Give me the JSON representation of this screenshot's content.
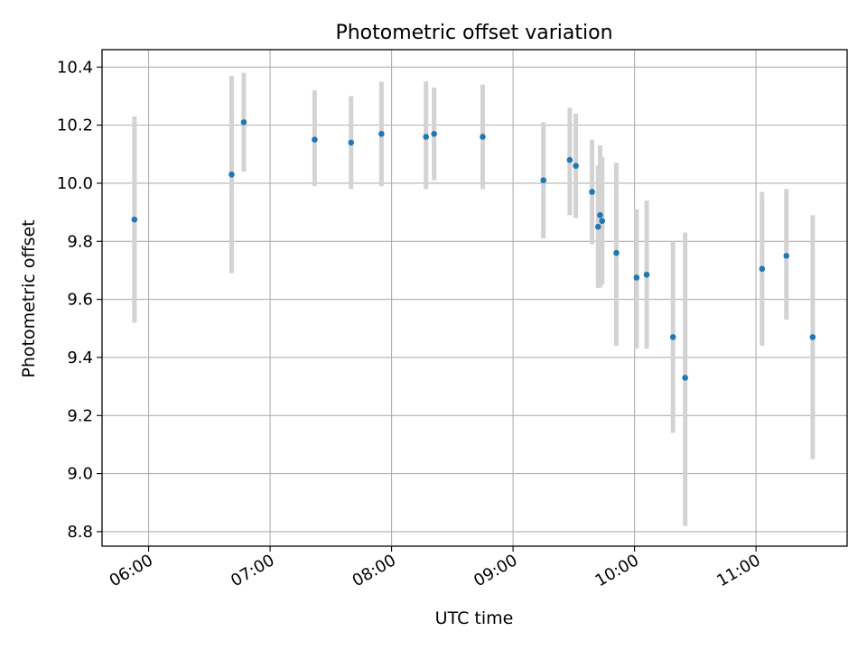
{
  "chart_data": {
    "type": "scatter",
    "title": "Photometric offset variation",
    "xlabel": "UTC time",
    "ylabel": "Photometric offset",
    "xlim": [
      "05:37",
      "11:45"
    ],
    "ylim": [
      8.75,
      10.46
    ],
    "x_ticks": [
      "06:00",
      "07:00",
      "08:00",
      "09:00",
      "10:00",
      "11:00"
    ],
    "y_ticks": [
      8.8,
      9.0,
      9.2,
      9.4,
      9.6,
      9.8,
      10.0,
      10.2,
      10.4
    ],
    "y_tick_labels": [
      "8.8",
      "9.0",
      "9.2",
      "9.4",
      "9.6",
      "9.8",
      "10.0",
      "10.2",
      "10.4"
    ],
    "grid": true,
    "marker_color": "#1f77b4",
    "errorbar_color": "#d3d3d3",
    "points": [
      {
        "x": "05:53",
        "y": 9.875,
        "ylow": 9.52,
        "yhigh": 10.23
      },
      {
        "x": "06:41",
        "y": 10.03,
        "ylow": 9.69,
        "yhigh": 10.37
      },
      {
        "x": "06:47",
        "y": 10.21,
        "ylow": 10.04,
        "yhigh": 10.38
      },
      {
        "x": "07:22",
        "y": 10.15,
        "ylow": 9.99,
        "yhigh": 10.32
      },
      {
        "x": "07:40",
        "y": 10.14,
        "ylow": 9.98,
        "yhigh": 10.3
      },
      {
        "x": "07:55",
        "y": 10.17,
        "ylow": 9.99,
        "yhigh": 10.35
      },
      {
        "x": "08:17",
        "y": 10.16,
        "ylow": 9.98,
        "yhigh": 10.35
      },
      {
        "x": "08:21",
        "y": 10.17,
        "ylow": 10.01,
        "yhigh": 10.33
      },
      {
        "x": "08:45",
        "y": 10.16,
        "ylow": 9.98,
        "yhigh": 10.34
      },
      {
        "x": "09:15",
        "y": 10.01,
        "ylow": 9.81,
        "yhigh": 10.21
      },
      {
        "x": "09:28",
        "y": 10.08,
        "ylow": 9.89,
        "yhigh": 10.26
      },
      {
        "x": "09:31",
        "y": 10.06,
        "ylow": 9.88,
        "yhigh": 10.24
      },
      {
        "x": "09:39",
        "y": 9.97,
        "ylow": 9.79,
        "yhigh": 10.15
      },
      {
        "x": "09:42",
        "y": 9.85,
        "ylow": 9.64,
        "yhigh": 10.06
      },
      {
        "x": "09:43",
        "y": 9.89,
        "ylow": 9.64,
        "yhigh": 10.13
      },
      {
        "x": "09:44",
        "y": 9.87,
        "ylow": 9.65,
        "yhigh": 10.09
      },
      {
        "x": "09:51",
        "y": 9.76,
        "ylow": 9.44,
        "yhigh": 10.07
      },
      {
        "x": "10:01",
        "y": 9.675,
        "ylow": 9.43,
        "yhigh": 9.91
      },
      {
        "x": "10:06",
        "y": 9.685,
        "ylow": 9.43,
        "yhigh": 9.94
      },
      {
        "x": "10:19",
        "y": 9.47,
        "ylow": 9.14,
        "yhigh": 9.8
      },
      {
        "x": "10:25",
        "y": 9.33,
        "ylow": 8.82,
        "yhigh": 9.83
      },
      {
        "x": "11:03",
        "y": 9.705,
        "ylow": 9.44,
        "yhigh": 9.97
      },
      {
        "x": "11:15",
        "y": 9.75,
        "ylow": 9.53,
        "yhigh": 9.98
      },
      {
        "x": "11:28",
        "y": 9.47,
        "ylow": 9.05,
        "yhigh": 9.89
      }
    ]
  }
}
